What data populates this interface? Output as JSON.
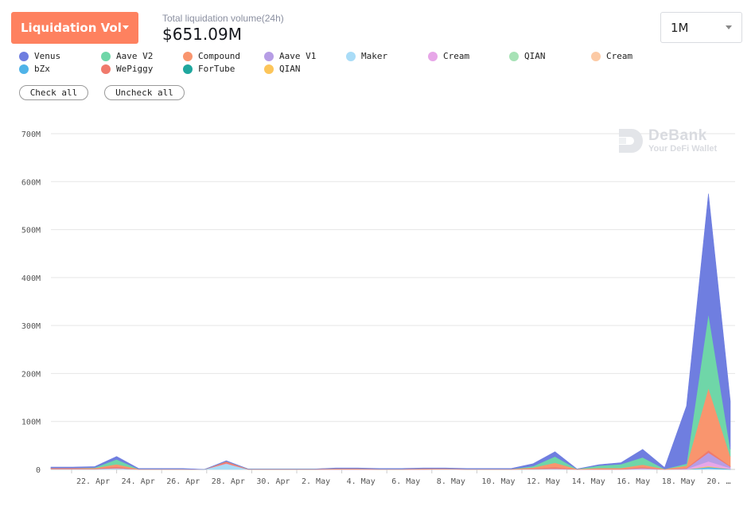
{
  "header": {
    "metric_label": "Liquidation Vol",
    "total_label": "Total liquidation volume(24h)",
    "total_value": "$651.09M",
    "range": "1M"
  },
  "legend": {
    "items": [
      {
        "label": "Venus",
        "color": "#6f7ee0"
      },
      {
        "label": "Aave V2",
        "color": "#6fd6a8"
      },
      {
        "label": "Compound",
        "color": "#f9956e"
      },
      {
        "label": "Aave V1",
        "color": "#b69de5"
      },
      {
        "label": "Maker",
        "color": "#a9dcf7"
      },
      {
        "label": "Cream",
        "color": "#e7a6e8"
      },
      {
        "label": "QIAN",
        "color": "#a7e2b6"
      },
      {
        "label": "Cream",
        "color": "#fccaa5"
      },
      {
        "label": "bZx",
        "color": "#4fb3e8"
      },
      {
        "label": "WePiggy",
        "color": "#f07a6c"
      },
      {
        "label": "ForTube",
        "color": "#1fa79e"
      },
      {
        "label": "QIAN",
        "color": "#fcc55a"
      }
    ],
    "check_all": "Check all",
    "uncheck_all": "Uncheck all"
  },
  "watermark": {
    "name": "DeBank",
    "tagline": "Your DeFi Wallet"
  },
  "chart_data": {
    "type": "area",
    "stacked": true,
    "ylim": [
      0,
      700
    ],
    "y_ticks": [
      "0",
      "100M",
      "200M",
      "300M",
      "400M",
      "500M",
      "600M",
      "700M"
    ],
    "x_ticks": [
      "22. Apr",
      "24. Apr",
      "26. Apr",
      "28. Apr",
      "30. Apr",
      "2. May",
      "4. May",
      "6. May",
      "8. May",
      "10. May",
      "12. May",
      "14. May",
      "16. May",
      "18. May",
      "20. …"
    ],
    "x": [
      "Apr 20",
      "Apr 21",
      "Apr 22",
      "Apr 23",
      "Apr 24",
      "Apr 25",
      "Apr 26",
      "Apr 27",
      "Apr 28",
      "Apr 29",
      "Apr 30",
      "May 1",
      "May 2",
      "May 3",
      "May 4",
      "May 5",
      "May 6",
      "May 7",
      "May 8",
      "May 9",
      "May 10",
      "May 11",
      "May 12",
      "May 13",
      "May 14",
      "May 15",
      "May 16",
      "May 17",
      "May 18",
      "May 19",
      "May 20",
      "May 21"
    ],
    "series": [
      {
        "name": "Maker",
        "color": "#a9dcf7",
        "values": [
          1,
          1,
          1,
          2,
          0,
          0,
          0,
          0,
          12,
          0,
          0,
          0,
          0,
          0,
          0,
          0,
          0,
          0,
          0,
          0,
          0,
          0,
          1,
          1,
          0,
          0,
          0,
          1,
          0,
          0,
          2,
          0
        ]
      },
      {
        "name": "bZx",
        "color": "#4fb3e8",
        "values": [
          0,
          0,
          0,
          0,
          0,
          0,
          0,
          0,
          0,
          0,
          0,
          0,
          0,
          0,
          0,
          0,
          0,
          0,
          0,
          0,
          0,
          0,
          0,
          0,
          0,
          0,
          0,
          0,
          0,
          0,
          3,
          1
        ]
      },
      {
        "name": "QIAN",
        "color": "#fcc55a",
        "values": [
          0,
          0,
          0,
          0,
          0,
          0,
          0,
          0,
          0,
          0,
          0,
          0,
          0,
          0,
          0,
          0,
          0,
          0,
          0,
          0,
          0,
          0,
          0,
          0,
          0,
          0,
          0,
          0,
          0,
          0,
          2,
          0
        ]
      },
      {
        "name": "Cream",
        "color": "#e7a6e8",
        "values": [
          0,
          0,
          0,
          1,
          0,
          0,
          0,
          0,
          1,
          0,
          0,
          0,
          0,
          0,
          0,
          0,
          0,
          0,
          1,
          0,
          0,
          0,
          0,
          1,
          0,
          0,
          0,
          1,
          0,
          1,
          10,
          2
        ]
      },
      {
        "name": "Aave V1",
        "color": "#b69de5",
        "values": [
          0,
          0,
          0,
          0,
          0,
          0,
          0,
          0,
          0,
          0,
          0,
          0,
          0,
          0,
          0,
          0,
          0,
          0,
          0,
          0,
          0,
          0,
          0,
          0,
          0,
          0,
          0,
          1,
          0,
          1,
          18,
          3
        ]
      },
      {
        "name": "WePiggy",
        "color": "#f07a6c",
        "values": [
          1,
          1,
          1,
          3,
          0,
          0,
          0,
          0,
          3,
          0,
          0,
          0,
          0,
          1,
          1,
          0,
          0,
          1,
          0,
          0,
          0,
          0,
          1,
          3,
          0,
          1,
          1,
          2,
          0,
          1,
          5,
          1
        ]
      },
      {
        "name": "Compound",
        "color": "#f9956e",
        "values": [
          1,
          1,
          1,
          5,
          1,
          1,
          1,
          0,
          1,
          1,
          1,
          1,
          1,
          1,
          1,
          1,
          1,
          1,
          1,
          1,
          1,
          1,
          2,
          9,
          1,
          2,
          2,
          5,
          1,
          5,
          130,
          20
        ]
      },
      {
        "name": "Aave V2",
        "color": "#6fd6a8",
        "values": [
          0,
          0,
          1,
          10,
          0,
          0,
          0,
          0,
          0,
          0,
          0,
          0,
          0,
          0,
          0,
          0,
          0,
          0,
          0,
          0,
          0,
          0,
          3,
          13,
          0,
          5,
          8,
          15,
          0,
          4,
          155,
          15
        ]
      },
      {
        "name": "Venus",
        "color": "#6f7ee0",
        "values": [
          2,
          2,
          2,
          6,
          1,
          1,
          1,
          0,
          1,
          0,
          0,
          0,
          0,
          1,
          1,
          1,
          1,
          1,
          1,
          1,
          1,
          1,
          5,
          10,
          0,
          2,
          3,
          17,
          3,
          120,
          250,
          100
        ]
      }
    ]
  }
}
